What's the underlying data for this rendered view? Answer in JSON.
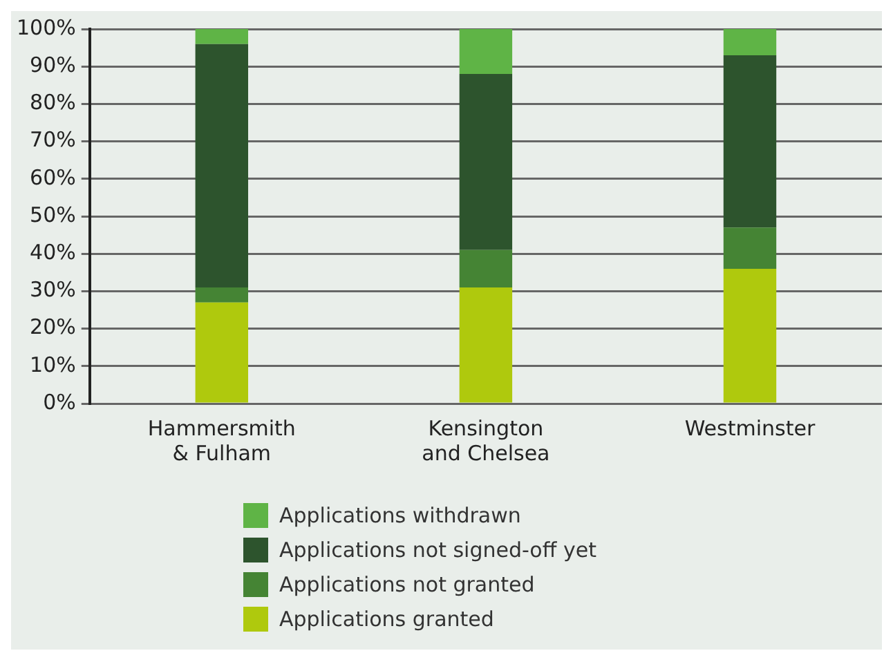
{
  "chart_data": {
    "type": "bar",
    "stacked": true,
    "categories": [
      "Hammersmith & Fulham",
      "Kensington and Chelsea",
      "Westminster"
    ],
    "series": [
      {
        "name": "Applications granted",
        "color": "#afc90d",
        "values": [
          27,
          31,
          36
        ]
      },
      {
        "name": "Applications not granted",
        "color": "#458434",
        "values": [
          4,
          10,
          11
        ]
      },
      {
        "name": "Applications not signed-off yet",
        "color": "#2d542d",
        "values": [
          65,
          47,
          46
        ]
      },
      {
        "name": "Applications withdrawn",
        "color": "#5fb446",
        "values": [
          4,
          12,
          7
        ]
      }
    ],
    "ylim": [
      0,
      100
    ],
    "yticks": [
      {
        "value": 0,
        "label": "0%"
      },
      {
        "value": 10,
        "label": "10%"
      },
      {
        "value": 20,
        "label": "20%"
      },
      {
        "value": 30,
        "label": "30%"
      },
      {
        "value": 40,
        "label": "40%"
      },
      {
        "value": 50,
        "label": "50%"
      },
      {
        "value": 60,
        "label": "60%"
      },
      {
        "value": 70,
        "label": "70%"
      },
      {
        "value": 80,
        "label": "80%"
      },
      {
        "value": 90,
        "label": "90%"
      },
      {
        "value": 100,
        "label": "100%"
      }
    ],
    "grid": "y",
    "legend": "bottom"
  }
}
